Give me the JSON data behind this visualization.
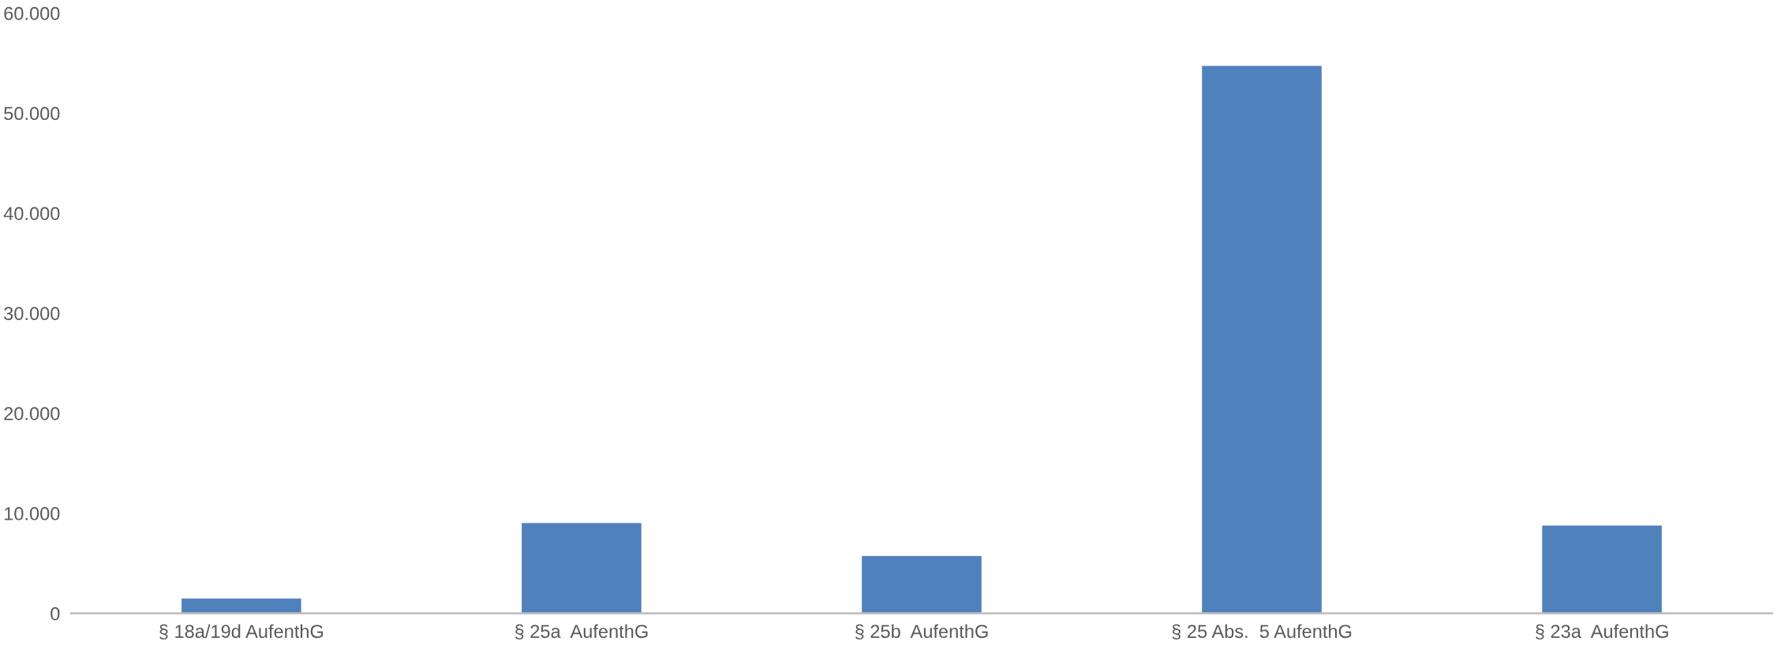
{
  "chart_data": {
    "type": "bar",
    "categories": [
      "§ 18a/19d AufenthG",
      "§ 25a  AufenthG",
      "§ 25b  AufenthG",
      "§ 25 Abs.  5 AufenthG",
      "§ 23a  AufenthG"
    ],
    "values": [
      1450,
      9000,
      5700,
      54700,
      8750
    ],
    "color": "#4f81bd",
    "ylim": [
      0,
      60000
    ],
    "yticks": [
      {
        "value": 0,
        "label": "0"
      },
      {
        "value": 10000,
        "label": "10.000"
      },
      {
        "value": 20000,
        "label": "20.000"
      },
      {
        "value": 30000,
        "label": "30.000"
      },
      {
        "value": 40000,
        "label": "40.000"
      },
      {
        "value": 50000,
        "label": "50.000"
      },
      {
        "value": 60000,
        "label": "60.000"
      }
    ],
    "grid": false
  }
}
